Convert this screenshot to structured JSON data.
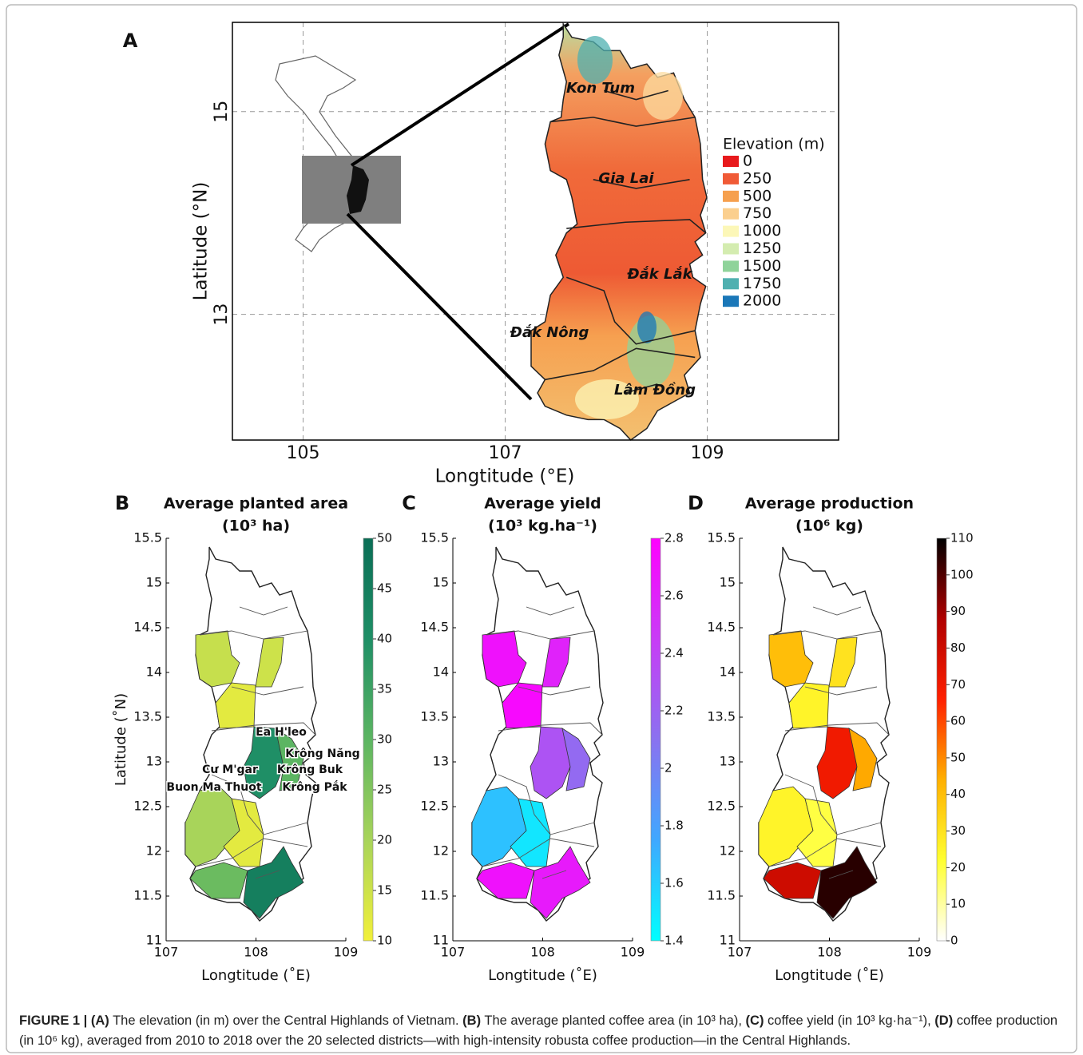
{
  "panel_a": {
    "label": "A",
    "xlabel": "Longtitude (°E)",
    "ylabel": "Latitude (°N)",
    "xlim": [
      104.3,
      110.3
    ],
    "ylim": [
      11.76,
      15.88
    ],
    "xticks": [
      105,
      107,
      109
    ],
    "yticks": [
      13,
      15
    ],
    "grid": true,
    "legend": {
      "title": "Elevation  (m)",
      "entries": [
        {
          "value": 0,
          "color": "#e8191c"
        },
        {
          "value": 250,
          "color": "#f05a36"
        },
        {
          "value": 500,
          "color": "#f6a04e"
        },
        {
          "value": 750,
          "color": "#fbcf8e"
        },
        {
          "value": 1000,
          "color": "#fcf7b8"
        },
        {
          "value": 1250,
          "color": "#d4ecb0"
        },
        {
          "value": 1500,
          "color": "#8fd39a"
        },
        {
          "value": 1750,
          "color": "#4fb0b0"
        },
        {
          "value": 2000,
          "color": "#1a77b8"
        }
      ]
    },
    "provinces": [
      "Kon Tum",
      "Gia Lai",
      "Đắk Lắk",
      "Đắk Nông",
      "Lâm Đồng"
    ]
  },
  "panels": [
    {
      "label": "B",
      "title": "Average planted area",
      "unit": "(10³ ha)",
      "xlabel": "Longtitude (˚E)",
      "ylabel": "Latitude (˚N)",
      "xlim": [
        107,
        109
      ],
      "ylim": [
        11,
        15.5
      ],
      "xticks": [
        107,
        108,
        109
      ],
      "yticks": [
        11,
        11.5,
        12,
        12.5,
        13,
        13.5,
        14,
        14.5,
        15,
        15.5
      ],
      "colorbar": {
        "lim": [
          10,
          50
        ],
        "ticks": [
          10,
          15,
          20,
          25,
          30,
          35,
          40,
          45,
          50
        ],
        "colors": [
          "#f2f03a",
          "#a8d45a",
          "#5cb562",
          "#1f8f66",
          "#0a6e56"
        ]
      },
      "region_values": [
        16,
        15,
        12,
        40,
        30,
        20,
        12,
        28,
        45
      ],
      "district_labels": [
        "Ea H'leo",
        "Krông Năng",
        "Cư M'gar",
        "Krông Buk",
        "Buon Ma Thuot",
        "Krông Pắk"
      ]
    },
    {
      "label": "C",
      "title": "Average yield",
      "unit": "(10³ kg.ha⁻¹)",
      "xlabel": "Longtitude (˚E)",
      "xlim": [
        107,
        109
      ],
      "ylim": [
        11,
        15.5
      ],
      "xticks": [
        107,
        108,
        109
      ],
      "yticks": [
        11,
        11.5,
        12,
        12.5,
        13,
        13.5,
        14,
        14.5,
        15,
        15.5
      ],
      "colorbar": {
        "lim": [
          1.4,
          2.8
        ],
        "ticks": [
          1.4,
          1.6,
          1.8,
          2,
          2.2,
          2.4,
          2.6,
          2.8
        ],
        "colors": [
          "#00ffff",
          "#3fa8ff",
          "#8a72f0",
          "#c83cf6",
          "#ff00ff"
        ]
      },
      "region_values": [
        2.7,
        2.6,
        2.75,
        2.3,
        2.15,
        1.65,
        1.5,
        2.7,
        2.65
      ]
    },
    {
      "label": "D",
      "title": "Average production",
      "unit": "(10⁶ kg)",
      "xlabel": "Longtitude (˚E)",
      "xlim": [
        107,
        109
      ],
      "ylim": [
        11,
        15.5
      ],
      "xticks": [
        107,
        108,
        109
      ],
      "yticks": [
        11,
        11.5,
        12,
        12.5,
        13,
        13.5,
        14,
        14.5,
        15,
        15.5
      ],
      "colorbar": {
        "lim": [
          0,
          110
        ],
        "ticks": [
          0,
          10,
          20,
          30,
          40,
          50,
          60,
          70,
          80,
          90,
          100,
          110
        ],
        "colors": [
          "#ffffff",
          "#ffff30",
          "#ffb000",
          "#ff2000",
          "#b00000",
          "#000000"
        ]
      },
      "region_values": [
        40,
        30,
        25,
        70,
        45,
        25,
        20,
        80,
        105
      ]
    }
  ],
  "caption": [
    "FIGURE 1 | (A)",
    " The elevation (in m) over the Central Highlands of Vietnam. ",
    "(B)",
    " The average planted coffee area (in 10³ ha), ",
    "(C)",
    " coffee yield (in 10³ kg·ha⁻¹), ",
    "(D)",
    " coffee production (in 10⁶ kg), averaged from 2010 to 2018 over the 20 selected districts—with high-intensity robusta coffee production—in the Central Highlands."
  ]
}
